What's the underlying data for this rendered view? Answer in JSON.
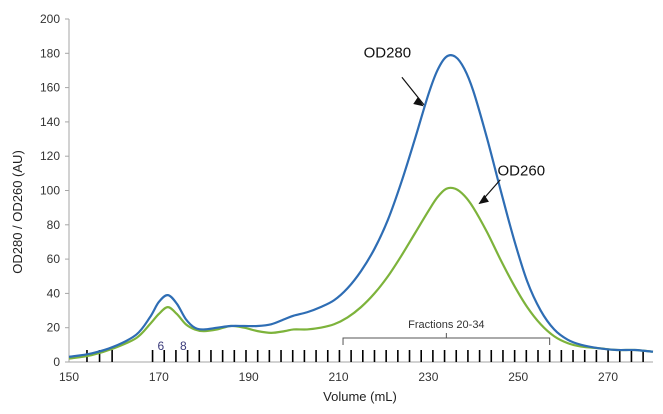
{
  "chart_data": {
    "type": "line",
    "title": "",
    "xlabel": "Volume (mL)",
    "ylabel": "OD280 / OD260 (AU)",
    "xlim": [
      150,
      280
    ],
    "ylim": [
      0,
      200
    ],
    "xticks": [
      150,
      170,
      190,
      210,
      230,
      250,
      270
    ],
    "yticks": [
      0,
      20,
      40,
      60,
      80,
      100,
      120,
      140,
      160,
      180,
      200
    ],
    "grid": false,
    "series": [
      {
        "name": "OD280",
        "color": "#2E6DB4",
        "x": [
          150,
          155,
          160,
          165,
          168,
          170,
          172,
          174,
          176,
          178,
          180,
          183,
          186,
          189,
          192,
          195,
          198,
          200,
          203,
          206,
          209,
          212,
          215,
          218,
          221,
          224,
          227,
          230,
          232,
          234,
          236,
          238,
          240,
          243,
          246,
          249,
          252,
          255,
          258,
          261,
          264,
          268,
          272,
          276,
          280
        ],
        "y": [
          3,
          5,
          9,
          16,
          26,
          35,
          39,
          34,
          25,
          20,
          19,
          20,
          21,
          21,
          21,
          22,
          25,
          27,
          29,
          32,
          36,
          43,
          53,
          66,
          83,
          105,
          130,
          156,
          170,
          178,
          178,
          171,
          158,
          131,
          101,
          72,
          47,
          30,
          19,
          13,
          10,
          8,
          7,
          7,
          6
        ]
      },
      {
        "name": "OD260",
        "color": "#7DB33B",
        "x": [
          150,
          155,
          160,
          165,
          168,
          170,
          172,
          174,
          176,
          178,
          180,
          183,
          186,
          189,
          192,
          195,
          198,
          200,
          203,
          206,
          209,
          212,
          215,
          218,
          221,
          224,
          227,
          230,
          232,
          234,
          236,
          238,
          240,
          243,
          246,
          249,
          252,
          255,
          258,
          261,
          264,
          268,
          272,
          276,
          280
        ],
        "y": [
          2,
          4,
          8,
          14,
          22,
          28,
          32,
          28,
          22,
          19,
          18,
          19,
          21,
          20,
          18,
          17,
          18,
          19,
          19,
          20,
          22,
          26,
          32,
          40,
          50,
          62,
          75,
          88,
          96,
          101,
          101,
          97,
          90,
          76,
          60,
          45,
          32,
          22,
          15,
          11,
          9,
          8,
          7,
          7,
          6
        ]
      }
    ],
    "annotations": [
      {
        "text": "OD280",
        "target_series": "OD280"
      },
      {
        "text": "OD260",
        "target_series": "OD260"
      },
      {
        "text": "Fractions 20-34",
        "x_range": [
          211,
          257
        ]
      },
      {
        "text": "6",
        "x": 170
      },
      {
        "text": "8",
        "x": 175
      }
    ],
    "fraction_markers_x": [
      154,
      156.8,
      159.6,
      168.6,
      171.2,
      173.8,
      176.4,
      179.0,
      181.6,
      184.2,
      186.8,
      189.4,
      192.0,
      194.6,
      197.2,
      199.8,
      202.4,
      205.0,
      207.6,
      210.2,
      212.8,
      215.4,
      218.0,
      220.6,
      223.2,
      225.8,
      228.4,
      231.0,
      233.6,
      236.2,
      238.8,
      241.4,
      244.0,
      246.6,
      249.2,
      251.8,
      254.4,
      257.0,
      259.6,
      262.2,
      264.8,
      267.4,
      270.0,
      272.6,
      275.2,
      277.8
    ]
  }
}
